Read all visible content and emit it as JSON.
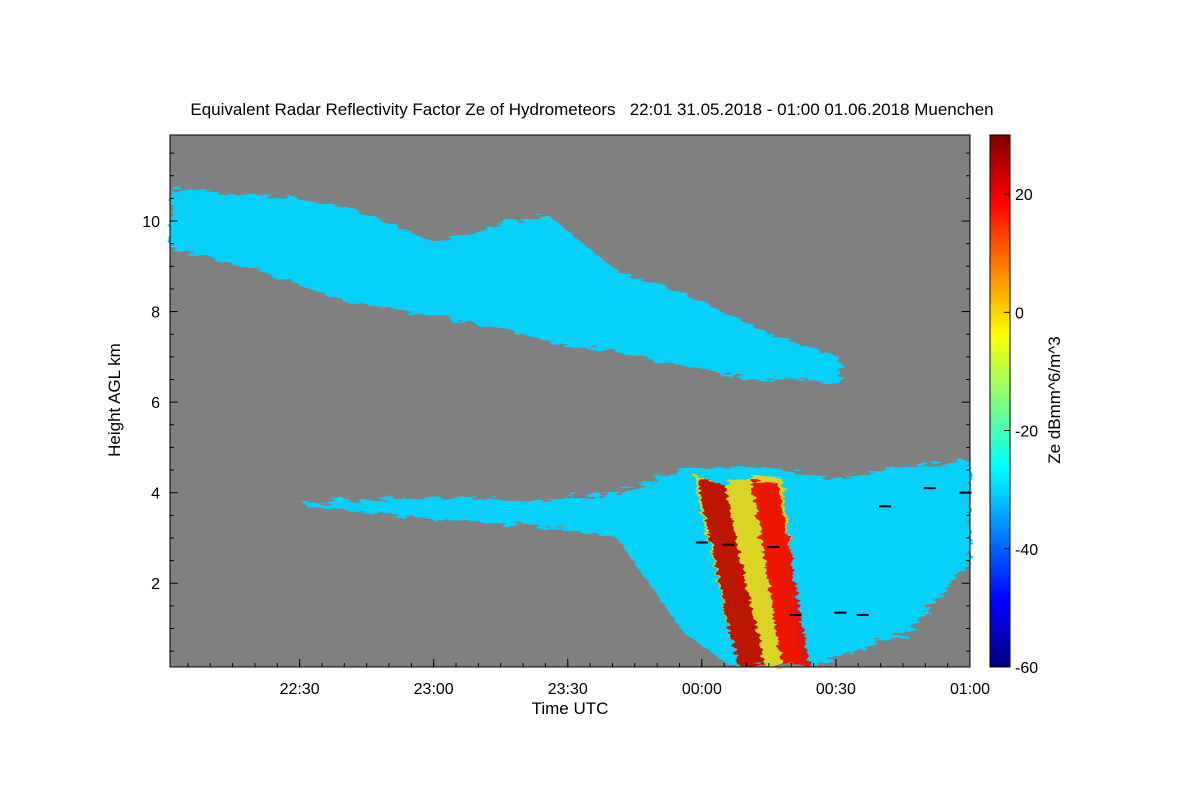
{
  "chart_data": {
    "type": "heatmap",
    "title": "Equivalent Radar Reflectivity Factor Ze of Hydrometeors   22:01 31.05.2018 - 01:00 01.06.2018 Muenchen",
    "xlabel": "Time UTC",
    "ylabel": "Height AGL km",
    "x_ticks": [
      "22:30",
      "23:00",
      "23:30",
      "00:00",
      "00:30",
      "01:00"
    ],
    "x_tick_minutes": [
      29,
      59,
      89,
      119,
      149,
      179
    ],
    "xlim_minutes": [
      0,
      179
    ],
    "y_ticks": [
      2,
      4,
      6,
      8,
      10
    ],
    "ylim": [
      0.15,
      11.9
    ],
    "colorbar": {
      "label": "Ze dBmm^6/m^3",
      "range": [
        -60,
        30
      ],
      "ticks": [
        20,
        0,
        -20,
        -40,
        -60
      ],
      "colormap": "jet"
    },
    "colors": {
      "no_echo_background": "#808080",
      "melting_layer_marks": "#000000"
    },
    "echo_regions": [
      {
        "name": "upper ice cloud",
        "top_km": [
          [
            0,
            10.7
          ],
          [
            20,
            10.6
          ],
          [
            40,
            10.3
          ],
          [
            60,
            9.5
          ],
          [
            75,
            10.0
          ],
          [
            85,
            10.1
          ],
          [
            100,
            8.9
          ],
          [
            115,
            8.4
          ],
          [
            130,
            7.7
          ],
          [
            140,
            7.3
          ],
          [
            150,
            7.0
          ]
        ],
        "bottom_km": [
          [
            0,
            9.4
          ],
          [
            20,
            8.9
          ],
          [
            40,
            8.2
          ],
          [
            60,
            7.9
          ],
          [
            75,
            7.6
          ],
          [
            85,
            7.3
          ],
          [
            100,
            7.1
          ],
          [
            115,
            6.8
          ],
          [
            130,
            6.5
          ],
          [
            140,
            6.5
          ],
          [
            150,
            6.4
          ]
        ],
        "peak_ze": -25
      },
      {
        "name": "lower precipitation system",
        "top_km": [
          [
            30,
            3.8
          ],
          [
            60,
            3.9
          ],
          [
            80,
            3.8
          ],
          [
            100,
            4.0
          ],
          [
            115,
            4.5
          ],
          [
            130,
            4.6
          ],
          [
            150,
            4.3
          ],
          [
            165,
            4.6
          ],
          [
            179,
            4.7
          ]
        ],
        "bottom_km": [
          [
            30,
            3.7
          ],
          [
            60,
            3.4
          ],
          [
            80,
            3.3
          ],
          [
            100,
            3.0
          ],
          [
            115,
            0.9
          ],
          [
            125,
            0.2
          ],
          [
            145,
            0.2
          ],
          [
            165,
            0.9
          ],
          [
            179,
            2.5
          ]
        ],
        "peak_ze": 25
      }
    ],
    "melting_layer_km": [
      [
        119,
        2.9
      ],
      [
        125,
        2.85
      ],
      [
        135,
        2.8
      ],
      [
        140,
        1.3
      ],
      [
        150,
        1.35
      ],
      [
        155,
        1.3
      ],
      [
        160,
        3.7
      ],
      [
        170,
        4.1
      ],
      [
        178,
        4.0
      ]
    ]
  }
}
